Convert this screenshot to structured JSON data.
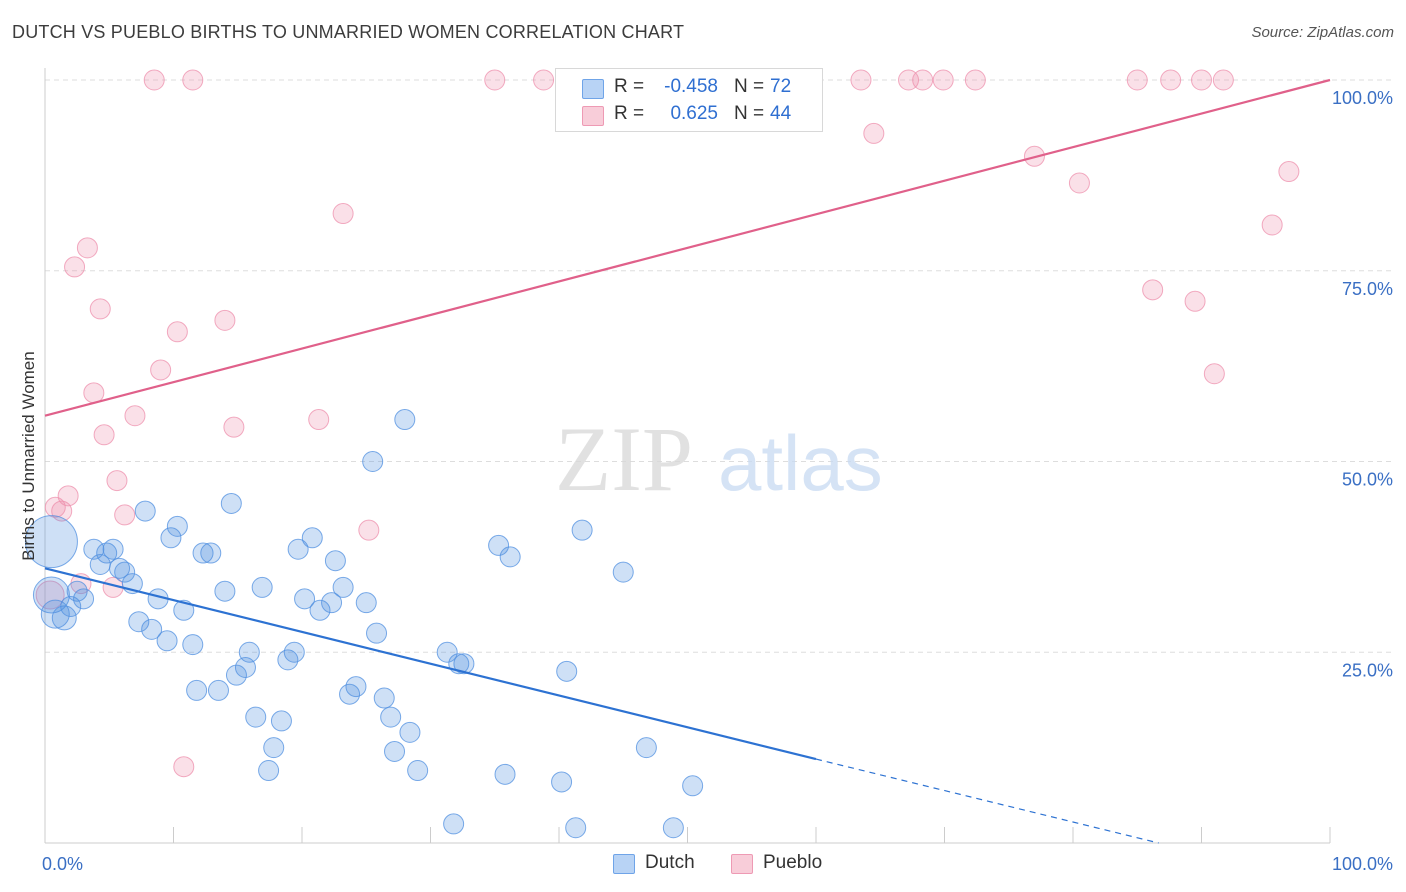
{
  "header": {
    "title": "DUTCH VS PUEBLO BIRTHS TO UNMARRIED WOMEN CORRELATION CHART",
    "source": "Source: ZipAtlas.com"
  },
  "watermark": {
    "zip": "ZIP",
    "atlas": "atlas"
  },
  "legend_top": [
    {
      "r_label": "R =",
      "r_value": "-0.458",
      "n_label": "N =",
      "n_value": "72",
      "color": "#6fa4e8",
      "fill": "#b8d3f5"
    },
    {
      "r_label": "R =",
      "r_value": "0.625",
      "n_label": "N =",
      "n_value": "44",
      "color": "#ee9ab4",
      "fill": "#f8cdd9"
    }
  ],
  "legend_bottom": [
    {
      "label": "Dutch",
      "color": "#6fa4e8",
      "fill": "#b8d3f5"
    },
    {
      "label": "Pueblo",
      "color": "#ee9ab4",
      "fill": "#f8cdd9"
    }
  ],
  "chart_data": {
    "type": "scatter",
    "title": "DUTCH VS PUEBLO BIRTHS TO UNMARRIED WOMEN CORRELATION CHART",
    "xlabel": "",
    "ylabel": "Births to Unmarried Women",
    "xlim": [
      0,
      100
    ],
    "ylim": [
      0,
      100
    ],
    "x_tick_labels": [
      "0.0%",
      "100.0%"
    ],
    "y_ticks": [
      25,
      50,
      75,
      100
    ],
    "y_tick_labels": [
      "25.0%",
      "50.0%",
      "75.0%",
      "100.0%"
    ],
    "grid": true,
    "legend_placement": "top-center",
    "series": [
      {
        "name": "Dutch",
        "color": "#4f8fe0",
        "line_color": "#2d72d2",
        "points": [
          [
            0.5,
            39.5
          ],
          [
            0.5,
            32.5
          ],
          [
            0.8,
            30.0
          ],
          [
            1.5,
            29.5
          ],
          [
            2.0,
            31.0
          ],
          [
            2.5,
            33.0
          ],
          [
            3.0,
            32.0
          ],
          [
            3.8,
            38.5
          ],
          [
            4.3,
            36.5
          ],
          [
            4.8,
            38.0
          ],
          [
            5.3,
            38.5
          ],
          [
            5.8,
            36.0
          ],
          [
            6.2,
            35.5
          ],
          [
            6.8,
            34.0
          ],
          [
            7.3,
            29.0
          ],
          [
            7.8,
            43.5
          ],
          [
            8.3,
            28.0
          ],
          [
            8.8,
            32.0
          ],
          [
            9.5,
            26.5
          ],
          [
            9.8,
            40.0
          ],
          [
            10.3,
            41.5
          ],
          [
            10.8,
            30.5
          ],
          [
            11.5,
            26.0
          ],
          [
            11.8,
            20.0
          ],
          [
            12.3,
            38.0
          ],
          [
            12.9,
            38.0
          ],
          [
            13.5,
            20.0
          ],
          [
            14.0,
            33.0
          ],
          [
            14.5,
            44.5
          ],
          [
            14.9,
            22.0
          ],
          [
            15.6,
            23.0
          ],
          [
            15.9,
            25.0
          ],
          [
            16.4,
            16.5
          ],
          [
            16.9,
            33.5
          ],
          [
            17.4,
            9.5
          ],
          [
            17.8,
            12.5
          ],
          [
            18.4,
            16.0
          ],
          [
            18.9,
            24.0
          ],
          [
            19.4,
            25.0
          ],
          [
            19.7,
            38.5
          ],
          [
            20.2,
            32.0
          ],
          [
            20.8,
            40.0
          ],
          [
            21.4,
            30.5
          ],
          [
            22.3,
            31.5
          ],
          [
            22.6,
            37.0
          ],
          [
            23.2,
            33.5
          ],
          [
            23.7,
            19.5
          ],
          [
            24.2,
            20.5
          ],
          [
            25.0,
            31.5
          ],
          [
            25.5,
            50.0
          ],
          [
            25.8,
            27.5
          ],
          [
            26.4,
            19.0
          ],
          [
            26.9,
            16.5
          ],
          [
            27.2,
            12.0
          ],
          [
            28.0,
            55.5
          ],
          [
            28.4,
            14.5
          ],
          [
            29.0,
            9.5
          ],
          [
            31.3,
            25.0
          ],
          [
            31.8,
            2.5
          ],
          [
            32.2,
            23.5
          ],
          [
            32.6,
            23.5
          ],
          [
            35.3,
            39.0
          ],
          [
            35.8,
            9.0
          ],
          [
            36.2,
            37.5
          ],
          [
            40.2,
            8.0
          ],
          [
            40.6,
            22.5
          ],
          [
            41.3,
            2.0
          ],
          [
            41.8,
            41.0
          ],
          [
            45.0,
            35.5
          ],
          [
            46.8,
            12.5
          ],
          [
            48.9,
            2.0
          ],
          [
            50.4,
            7.5
          ]
        ],
        "sizes": [
          26,
          18,
          14,
          12,
          10,
          10,
          10,
          10,
          10,
          10,
          10,
          10,
          10,
          10,
          10,
          10,
          10,
          10,
          10,
          10,
          10,
          10,
          10,
          10,
          10,
          10,
          10,
          10,
          10,
          10,
          10,
          10,
          10,
          10,
          10,
          10,
          10,
          10,
          10,
          10,
          10,
          10,
          10,
          10,
          10,
          10,
          10,
          10,
          10,
          10,
          10,
          10,
          10,
          10,
          10,
          10,
          10,
          10,
          10,
          10,
          10,
          10,
          10,
          10,
          10,
          10,
          10,
          10,
          10,
          10,
          10,
          10
        ],
        "trend": {
          "x0": 0,
          "y0": 36.0,
          "x1": 60.0,
          "y1": 11.0,
          "dash_to_x": 100,
          "dash_to_y": -5.5
        }
      },
      {
        "name": "Pueblo",
        "color": "#ee8fac",
        "line_color": "#e0608a",
        "points": [
          [
            0.4,
            32.5
          ],
          [
            0.8,
            44.0
          ],
          [
            1.3,
            43.5
          ],
          [
            1.8,
            45.5
          ],
          [
            2.3,
            75.5
          ],
          [
            2.8,
            34.0
          ],
          [
            3.3,
            78.0
          ],
          [
            3.8,
            59.0
          ],
          [
            4.3,
            70.0
          ],
          [
            4.6,
            53.5
          ],
          [
            5.3,
            33.5
          ],
          [
            5.6,
            47.5
          ],
          [
            6.2,
            43.0
          ],
          [
            7.0,
            56.0
          ],
          [
            8.5,
            100.0
          ],
          [
            9.0,
            62.0
          ],
          [
            10.3,
            67.0
          ],
          [
            10.8,
            10.0
          ],
          [
            11.5,
            100.0
          ],
          [
            14.0,
            68.5
          ],
          [
            14.7,
            54.5
          ],
          [
            21.3,
            55.5
          ],
          [
            23.2,
            82.5
          ],
          [
            25.2,
            41.0
          ],
          [
            35.0,
            100.0
          ],
          [
            38.8,
            100.0
          ],
          [
            41.0,
            100.0
          ],
          [
            63.5,
            100.0
          ],
          [
            64.5,
            93.0
          ],
          [
            67.2,
            100.0
          ],
          [
            68.3,
            100.0
          ],
          [
            69.9,
            100.0
          ],
          [
            72.4,
            100.0
          ],
          [
            77.0,
            90.0
          ],
          [
            80.5,
            86.5
          ],
          [
            85.0,
            100.0
          ],
          [
            86.2,
            72.5
          ],
          [
            87.6,
            100.0
          ],
          [
            89.5,
            71.0
          ],
          [
            90.0,
            100.0
          ],
          [
            91.0,
            61.5
          ],
          [
            91.7,
            100.0
          ],
          [
            95.5,
            81.0
          ],
          [
            96.8,
            88.0
          ]
        ],
        "sizes": [
          14,
          10,
          10,
          10,
          10,
          10,
          10,
          10,
          10,
          10,
          10,
          10,
          10,
          10,
          10,
          10,
          10,
          10,
          10,
          10,
          10,
          10,
          10,
          10,
          10,
          10,
          10,
          10,
          10,
          10,
          10,
          10,
          10,
          10,
          10,
          10,
          10,
          10,
          10,
          10,
          10,
          10,
          10,
          10
        ],
        "trend": {
          "x0": 0,
          "y0": 56.0,
          "x1": 100,
          "y1": 100.0
        }
      }
    ]
  }
}
